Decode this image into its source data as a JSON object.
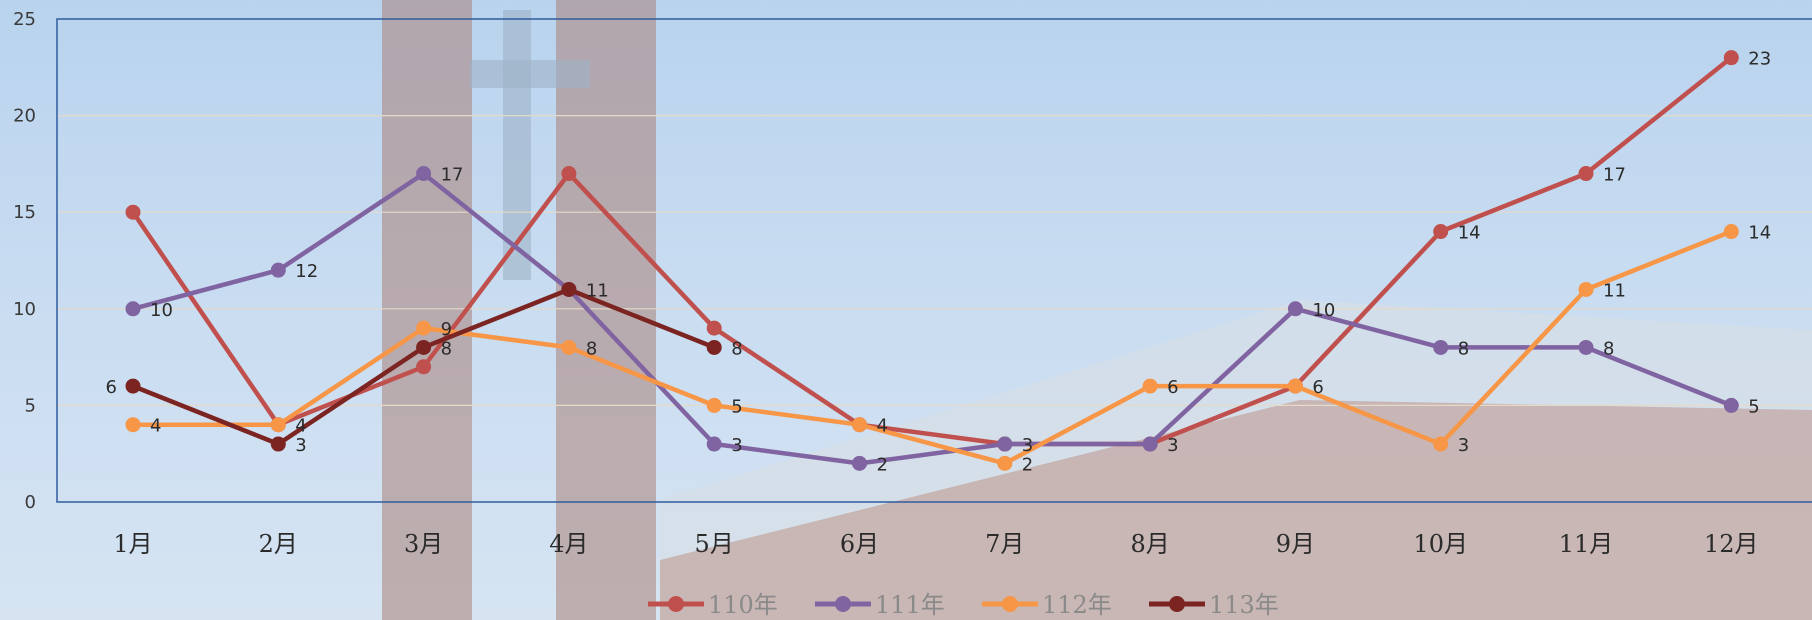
{
  "chart_data": {
    "type": "line",
    "categories": [
      "1月",
      "2月",
      "3月",
      "4月",
      "5月",
      "6月",
      "7月",
      "8月",
      "9月",
      "10月",
      "11月",
      "12月"
    ],
    "ylim": [
      0,
      25
    ],
    "yticks": [
      0,
      5,
      10,
      15,
      20,
      25
    ],
    "grid": true,
    "legend_position": "bottom",
    "series": [
      {
        "name": "110年",
        "color": "#c0504d",
        "values": [
          15,
          4,
          7,
          17,
          9,
          4,
          3,
          3,
          6,
          14,
          17,
          23
        ],
        "labels": [
          null,
          null,
          null,
          null,
          null,
          null,
          null,
          null,
          null,
          14,
          17,
          23
        ]
      },
      {
        "name": "111年",
        "color": "#8064a2",
        "values": [
          10,
          12,
          17,
          11,
          3,
          2,
          3,
          3,
          10,
          8,
          8,
          5
        ],
        "labels": [
          10,
          12,
          17,
          null,
          3,
          2,
          3,
          3,
          10,
          8,
          8,
          5
        ]
      },
      {
        "name": "112年",
        "color": "#f79646",
        "values": [
          4,
          4,
          9,
          8,
          5,
          4,
          2,
          6,
          6,
          3,
          11,
          14
        ],
        "labels": [
          4,
          4,
          9,
          8,
          5,
          4,
          2,
          6,
          6,
          3,
          11,
          14
        ]
      },
      {
        "name": "113年",
        "color": "#7b2421",
        "values": [
          6,
          3,
          8,
          11,
          8,
          null,
          null,
          null,
          null,
          null,
          null,
          null
        ],
        "labels": [
          6,
          3,
          8,
          11,
          8,
          null,
          null,
          null,
          null,
          null,
          null,
          null
        ]
      }
    ]
  }
}
